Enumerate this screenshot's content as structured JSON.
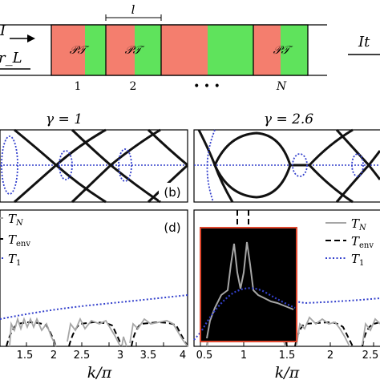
{
  "schematic": {
    "left_incident_label": "I",
    "left_reflected_label": "r_L",
    "right_transmitted_label": "It",
    "cell_length_label": "l",
    "pt_label": "𝒫𝒯",
    "cell_numbers": [
      "1",
      "2",
      "N"
    ],
    "ellipsis": "• • •",
    "colors": {
      "loss": "#f47e6e",
      "gain": "#5fe35c"
    }
  },
  "panels": {
    "gamma_left": "γ = 1",
    "gamma_right": "γ = 2.6",
    "panel_b_label": "(b)",
    "panel_d_label": "(d)"
  },
  "legend_left": [
    {
      "label": "T_N",
      "style": "solid",
      "color": "#a6a6a6"
    },
    {
      "label": "T_env",
      "style": "dashed",
      "color": "#000000"
    },
    {
      "label": "T_1",
      "style": "dotted",
      "color": "#3340cc"
    }
  ],
  "legend_right": [
    {
      "label": "T_N",
      "style": "solid",
      "color": "#a6a6a6"
    },
    {
      "label": "T_env",
      "style": "dashed",
      "color": "#000000"
    },
    {
      "label": "T_1",
      "style": "dotted",
      "color": "#3340cc"
    }
  ],
  "chart_data": [
    {
      "type": "line",
      "panel": "band-left",
      "title": "γ = 1",
      "xlim": [
        1.25,
        4.0
      ],
      "series": [
        {
          "name": "",
          "style": "solid",
          "color": "#000000"
        },
        {
          "name": "",
          "style": "dotted",
          "color": "#3340cc"
        }
      ]
    },
    {
      "type": "line",
      "panel": "band-right",
      "title": "γ = 2.6",
      "xlim": [
        0.5,
        2.75
      ],
      "series": [
        {
          "name": "",
          "style": "solid",
          "color": "#000000"
        },
        {
          "name": "",
          "style": "dotted",
          "color": "#3340cc"
        }
      ]
    },
    {
      "type": "line",
      "panel": "transmission-left",
      "xlabel": "k/π",
      "xlim": [
        1.25,
        4.0
      ],
      "xticks": [
        "1.5",
        "2",
        "2.5",
        "3",
        "3.5",
        "4"
      ],
      "xtick_values": [
        1.5,
        2,
        2.5,
        3,
        3.5,
        4
      ],
      "series": [
        {
          "name": "T_N",
          "style": "solid",
          "color": "#a6a6a6"
        },
        {
          "name": "T_env",
          "style": "dashed",
          "color": "#000000"
        },
        {
          "name": "T_1",
          "style": "dotted",
          "color": "#3340cc"
        }
      ]
    },
    {
      "type": "line",
      "panel": "transmission-right",
      "xlabel": "k/π",
      "xlim": [
        0.5,
        2.75
      ],
      "xticks": [
        "0.5",
        "1",
        "1.5",
        "2",
        "2.5"
      ],
      "xtick_values": [
        0.5,
        1,
        1.5,
        2,
        2.5
      ],
      "series": [
        {
          "name": "T_N",
          "style": "solid",
          "color": "#a6a6a6"
        },
        {
          "name": "T_env",
          "style": "dashed",
          "color": "#000000"
        },
        {
          "name": "T_1",
          "style": "dotted",
          "color": "#3340cc"
        }
      ]
    }
  ]
}
